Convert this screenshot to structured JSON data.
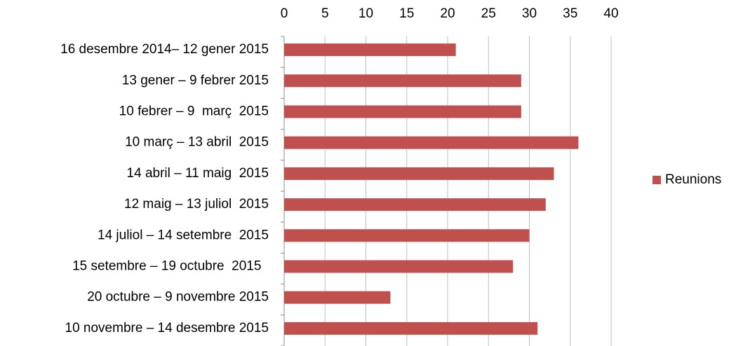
{
  "chart_data": {
    "type": "bar",
    "orientation": "horizontal",
    "categories": [
      "16 desembre 2014– 12 gener 2015",
      "13 gener – 9 febrer 2015",
      "10 febrer – 9  març  2015",
      "10 març – 13 abril  2015",
      "14 abril – 11 maig  2015",
      "12 maig – 13 juliol  2015",
      "14 juliol – 14 setembre  2015",
      "15 setembre – 19 octubre  2015  ",
      "20 octubre – 9 novembre 2015",
      "10 novembre – 14 desembre 2015"
    ],
    "series": [
      {
        "name": "Reunions",
        "color": "#c0504d",
        "values": [
          21,
          29,
          29,
          36,
          33,
          32,
          30,
          28,
          13,
          31
        ]
      }
    ],
    "xlim": [
      0,
      40
    ],
    "xticks": [
      0,
      5,
      10,
      15,
      20,
      25,
      30,
      35,
      40
    ],
    "grid": true,
    "legend": "right"
  }
}
